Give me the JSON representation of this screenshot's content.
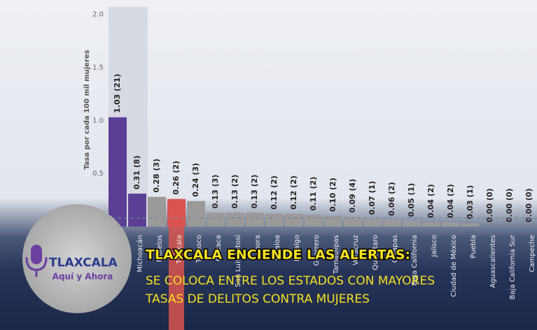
{
  "chart_data": {
    "type": "bar",
    "y_label": "Tasa por cada 100 mil mujeres",
    "categories": [
      null,
      "Michoacán",
      "Morelos",
      "Tlaxcala",
      "Tabasco",
      "Oaxaca",
      "San Luis Potosí",
      "Sonora",
      "Sinaloa",
      "Hidalgo",
      "Guerrero",
      "Tamaulipas",
      "Veracruz",
      "Querétaro",
      "Chiapas",
      "Baja California",
      "Jalisco",
      "Ciudad de México",
      "Puebla",
      "Aguascalientes",
      "Baja California Sur",
      "Campeche"
    ],
    "values": [
      1.03,
      0.31,
      0.28,
      0.26,
      0.24,
      0.13,
      0.13,
      0.13,
      0.12,
      0.12,
      0.11,
      0.1,
      0.09,
      0.07,
      0.06,
      0.05,
      0.04,
      0.04,
      0.03,
      0.0,
      0.0,
      0.0
    ],
    "value_labels": [
      "1.03 (21)",
      "0.31 (8)",
      "0.28 (3)",
      "0.26 (2)",
      "0.24 (3)",
      "0.13 (3)",
      "0.13 (2)",
      "0.13 (2)",
      "0.12 (2)",
      "0.12 (2)",
      "0.11 (2)",
      "0.10 (2)",
      "0.09 (4)",
      "0.07 (1)",
      "0.06 (2)",
      "0.05 (1)",
      "0.04 (2)",
      "0.04 (2)",
      "0.03 (1)",
      "0.00 (0)",
      "0.00 (0)",
      "0.00 (0)"
    ],
    "colors": [
      "#5b3f96",
      "#5b3f96",
      "#9a9a9a",
      "#d9534f",
      "#9a9a9a",
      "#9a9a9a",
      "#9a9a9a",
      "#9a9a9a",
      "#9a9a9a",
      "#9a9a9a",
      "#9a9a9a",
      "#9a9a9a",
      "#9a9a9a",
      "#9a9a9a",
      "#9a9a9a",
      "#9a9a9a",
      "#9a9a9a",
      "#9a9a9a",
      "#9a9a9a",
      "#9a9a9a",
      "#9a9a9a",
      "#9a9a9a"
    ],
    "reference_line": 0.08,
    "ylim": [
      0,
      2.07
    ],
    "yticks": [
      0.5,
      {
        "value": 1,
        "label": "1.0"
      },
      1.5,
      {
        "value": 2,
        "label": "2.0"
      }
    ]
  },
  "overlay": {
    "logo_name": "TLAXCALA",
    "logo_tagline": "Aquí y Ahora",
    "headline": "TLAXCALA ENCIENDE LAS ALERTAS:",
    "subheadline": [
      "SE COLOCA ENTRE LOS ESTADOS CON MAYORES",
      "TASAS DE DELITOS CONTRA MUJERES"
    ]
  }
}
